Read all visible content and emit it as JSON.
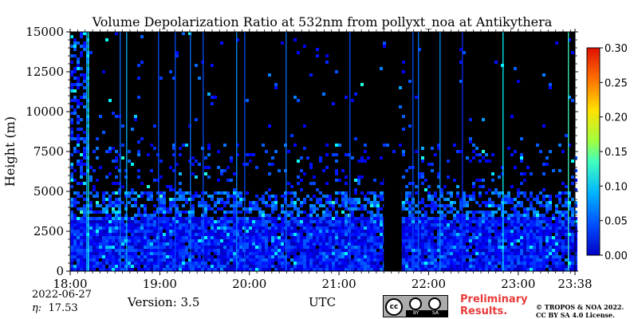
{
  "chart_data": {
    "type": "heatmap",
    "title": "Volume Depolarization Ratio at 532nm from pollyxt_noa at Antikythera",
    "xlabel": "UTC",
    "ylabel": "Height (m)",
    "x_range": [
      "18:00",
      "23:38"
    ],
    "y_range": [
      0,
      15000
    ],
    "x_ticks": [
      "18:00",
      "19:00",
      "20:00",
      "21:00",
      "22:00",
      "23:00",
      "23:38"
    ],
    "y_ticks": [
      "0",
      "2500",
      "5000",
      "7500",
      "10000",
      "12500",
      "15000"
    ],
    "colorbar": {
      "range": [
        0,
        0.3
      ],
      "ticks": [
        "0.00",
        "0.05",
        "0.10",
        "0.15",
        "0.20",
        "0.25",
        "0.30"
      ],
      "colormap": "jet"
    },
    "background_color": "#000000",
    "no_data_gap": {
      "start": "21:30",
      "end": "21:42"
    },
    "layers": [
      {
        "base_m": 0,
        "top_m": 3500,
        "depol": 0.04
      },
      {
        "base_m": 3500,
        "top_m": 5000,
        "depol": 0.06
      }
    ]
  },
  "footer": {
    "date": "2022-06-27",
    "eta_label": "η:",
    "eta_value": "17.53",
    "version": "Version: 3.5",
    "prelim_line1": "Preliminary",
    "prelim_line2": "Results.",
    "copyright_line1": "© TROPOS & NOA 2022.",
    "copyright_line2": "CC BY SA 4.0 License."
  },
  "license_badge": {
    "cc": "cc",
    "by": "BY",
    "sa": "SA"
  }
}
